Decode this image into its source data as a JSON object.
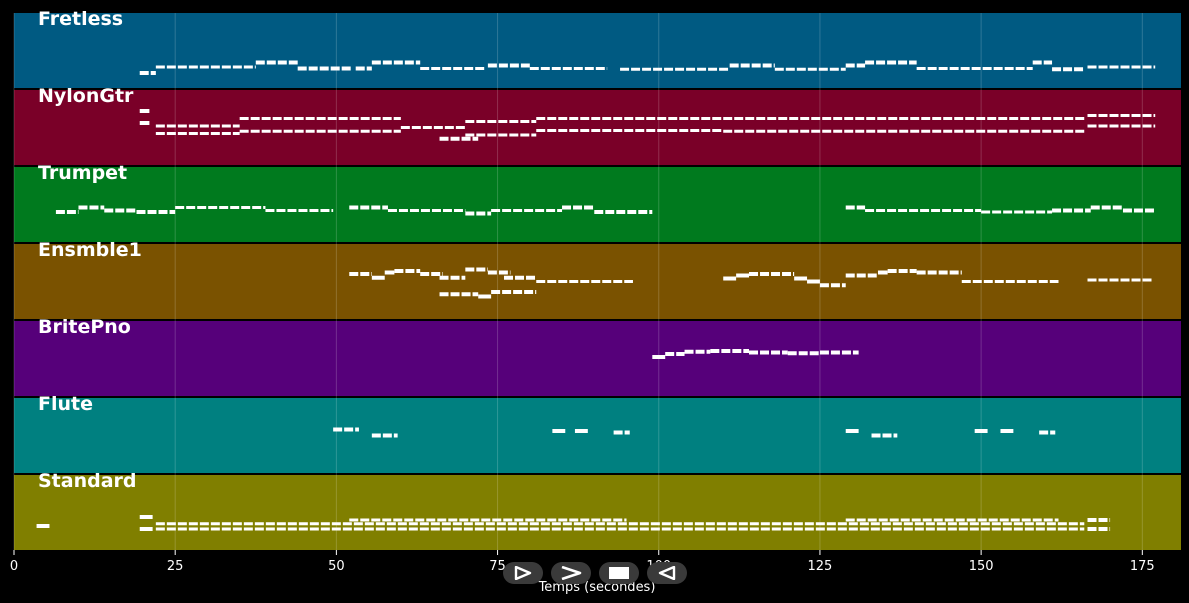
{
  "chart_data": {
    "type": "piano-roll",
    "xlabel": "Temps (secondes)",
    "xlim": [
      0,
      181
    ],
    "xticks": [
      0,
      25,
      50,
      75,
      100,
      125,
      150,
      175
    ],
    "grid": true,
    "note_color": "#ffffff",
    "tracks": [
      {
        "name": "Fretless",
        "color": "#005a82",
        "segments": [
          {
            "start": 19.5,
            "end": 22.0,
            "pitch": 0.2
          },
          {
            "start": 22.0,
            "end": 37.5,
            "pitch": 0.28
          },
          {
            "start": 37.5,
            "end": 44.0,
            "pitch": 0.34
          },
          {
            "start": 44.0,
            "end": 52.5,
            "pitch": 0.26
          },
          {
            "start": 53.0,
            "end": 55.5,
            "pitch": 0.26
          },
          {
            "start": 55.5,
            "end": 63.0,
            "pitch": 0.34
          },
          {
            "start": 63.0,
            "end": 73.0,
            "pitch": 0.26
          },
          {
            "start": 73.5,
            "end": 80.0,
            "pitch": 0.3
          },
          {
            "start": 80.0,
            "end": 92.0,
            "pitch": 0.26
          },
          {
            "start": 94.0,
            "end": 111.0,
            "pitch": 0.25
          },
          {
            "start": 111.0,
            "end": 118.0,
            "pitch": 0.3
          },
          {
            "start": 118.0,
            "end": 129.0,
            "pitch": 0.25
          },
          {
            "start": 129.0,
            "end": 132.0,
            "pitch": 0.3
          },
          {
            "start": 132.0,
            "end": 140.0,
            "pitch": 0.34
          },
          {
            "start": 140.0,
            "end": 158.0,
            "pitch": 0.26
          },
          {
            "start": 158.0,
            "end": 161.0,
            "pitch": 0.34
          },
          {
            "start": 161.0,
            "end": 166.0,
            "pitch": 0.25
          },
          {
            "start": 166.5,
            "end": 177.0,
            "pitch": 0.28
          }
        ]
      },
      {
        "name": "NylonGtr",
        "color": "#7a0028",
        "segments": [
          {
            "start": 19.5,
            "end": 21.0,
            "pitch": 0.72
          },
          {
            "start": 19.5,
            "end": 21.0,
            "pitch": 0.56
          },
          {
            "start": 22.0,
            "end": 35.0,
            "pitch": 0.52
          },
          {
            "start": 22.0,
            "end": 35.0,
            "pitch": 0.42
          },
          {
            "start": 35.0,
            "end": 60.0,
            "pitch": 0.62
          },
          {
            "start": 35.0,
            "end": 60.0,
            "pitch": 0.45
          },
          {
            "start": 60.0,
            "end": 70.0,
            "pitch": 0.5
          },
          {
            "start": 66.0,
            "end": 72.0,
            "pitch": 0.35
          },
          {
            "start": 70.0,
            "end": 81.0,
            "pitch": 0.58
          },
          {
            "start": 70.0,
            "end": 81.0,
            "pitch": 0.4
          },
          {
            "start": 81.0,
            "end": 110.0,
            "pitch": 0.62
          },
          {
            "start": 81.0,
            "end": 110.0,
            "pitch": 0.46
          },
          {
            "start": 110.0,
            "end": 166.0,
            "pitch": 0.62
          },
          {
            "start": 110.0,
            "end": 166.0,
            "pitch": 0.45
          },
          {
            "start": 166.5,
            "end": 177.0,
            "pitch": 0.66
          },
          {
            "start": 166.5,
            "end": 177.0,
            "pitch": 0.52
          }
        ]
      },
      {
        "name": "Trumpet",
        "color": "#007a1e",
        "segments": [
          {
            "start": 6.5,
            "end": 10.0,
            "pitch": 0.4
          },
          {
            "start": 10.0,
            "end": 14.0,
            "pitch": 0.46
          },
          {
            "start": 14.0,
            "end": 19.0,
            "pitch": 0.42
          },
          {
            "start": 19.0,
            "end": 25.0,
            "pitch": 0.4
          },
          {
            "start": 25.0,
            "end": 39.0,
            "pitch": 0.46
          },
          {
            "start": 39.0,
            "end": 49.5,
            "pitch": 0.42
          },
          {
            "start": 52.0,
            "end": 58.0,
            "pitch": 0.46
          },
          {
            "start": 58.0,
            "end": 70.0,
            "pitch": 0.42
          },
          {
            "start": 70.0,
            "end": 74.0,
            "pitch": 0.38
          },
          {
            "start": 74.0,
            "end": 85.0,
            "pitch": 0.42
          },
          {
            "start": 85.0,
            "end": 90.0,
            "pitch": 0.46
          },
          {
            "start": 90.0,
            "end": 99.0,
            "pitch": 0.4
          },
          {
            "start": 129.0,
            "end": 132.0,
            "pitch": 0.46
          },
          {
            "start": 132.0,
            "end": 150.0,
            "pitch": 0.42
          },
          {
            "start": 150.0,
            "end": 161.0,
            "pitch": 0.4
          },
          {
            "start": 161.0,
            "end": 167.0,
            "pitch": 0.42
          },
          {
            "start": 167.0,
            "end": 172.0,
            "pitch": 0.46
          },
          {
            "start": 172.0,
            "end": 177.0,
            "pitch": 0.42
          }
        ]
      },
      {
        "name": "Ensmble1",
        "color": "#7a5200",
        "segments": [
          {
            "start": 52.0,
            "end": 55.5,
            "pitch": 0.6
          },
          {
            "start": 55.5,
            "end": 57.5,
            "pitch": 0.55
          },
          {
            "start": 57.5,
            "end": 59.0,
            "pitch": 0.62
          },
          {
            "start": 59.0,
            "end": 63.0,
            "pitch": 0.64
          },
          {
            "start": 63.0,
            "end": 66.5,
            "pitch": 0.6
          },
          {
            "start": 66.0,
            "end": 70.0,
            "pitch": 0.55
          },
          {
            "start": 70.0,
            "end": 73.5,
            "pitch": 0.66
          },
          {
            "start": 73.5,
            "end": 77.0,
            "pitch": 0.62
          },
          {
            "start": 76.0,
            "end": 81.0,
            "pitch": 0.55
          },
          {
            "start": 81.0,
            "end": 96.0,
            "pitch": 0.5
          },
          {
            "start": 66.0,
            "end": 72.0,
            "pitch": 0.33
          },
          {
            "start": 72.0,
            "end": 74.0,
            "pitch": 0.3
          },
          {
            "start": 74.0,
            "end": 81.0,
            "pitch": 0.36
          },
          {
            "start": 110.0,
            "end": 112.0,
            "pitch": 0.54
          },
          {
            "start": 112.0,
            "end": 114.0,
            "pitch": 0.58
          },
          {
            "start": 114.0,
            "end": 121.0,
            "pitch": 0.6
          },
          {
            "start": 121.0,
            "end": 123.0,
            "pitch": 0.54
          },
          {
            "start": 123.0,
            "end": 125.0,
            "pitch": 0.5
          },
          {
            "start": 125.0,
            "end": 129.0,
            "pitch": 0.45
          },
          {
            "start": 129.0,
            "end": 134.0,
            "pitch": 0.58
          },
          {
            "start": 134.0,
            "end": 135.5,
            "pitch": 0.62
          },
          {
            "start": 135.5,
            "end": 140.0,
            "pitch": 0.64
          },
          {
            "start": 140.0,
            "end": 147.0,
            "pitch": 0.62
          },
          {
            "start": 147.0,
            "end": 162.0,
            "pitch": 0.5
          },
          {
            "start": 166.5,
            "end": 176.5,
            "pitch": 0.52
          }
        ]
      },
      {
        "name": "BritePno",
        "color": "#56007a",
        "segments": [
          {
            "start": 99.0,
            "end": 101.0,
            "pitch": 0.52
          },
          {
            "start": 101.0,
            "end": 104.0,
            "pitch": 0.56
          },
          {
            "start": 104.0,
            "end": 108.0,
            "pitch": 0.59
          },
          {
            "start": 108.0,
            "end": 114.0,
            "pitch": 0.6
          },
          {
            "start": 114.0,
            "end": 120.0,
            "pitch": 0.58
          },
          {
            "start": 120.0,
            "end": 125.0,
            "pitch": 0.57
          },
          {
            "start": 125.0,
            "end": 131.0,
            "pitch": 0.58
          }
        ]
      },
      {
        "name": "Flute",
        "color": "#008080",
        "segments": [
          {
            "start": 49.5,
            "end": 53.5,
            "pitch": 0.58
          },
          {
            "start": 55.5,
            "end": 59.5,
            "pitch": 0.5
          },
          {
            "start": 83.5,
            "end": 85.5,
            "pitch": 0.56
          },
          {
            "start": 87.0,
            "end": 89.0,
            "pitch": 0.56
          },
          {
            "start": 93.0,
            "end": 95.5,
            "pitch": 0.54
          },
          {
            "start": 129.0,
            "end": 131.0,
            "pitch": 0.56
          },
          {
            "start": 133.0,
            "end": 137.0,
            "pitch": 0.5
          },
          {
            "start": 149.0,
            "end": 151.0,
            "pitch": 0.56
          },
          {
            "start": 153.0,
            "end": 155.0,
            "pitch": 0.56
          },
          {
            "start": 159.0,
            "end": 161.5,
            "pitch": 0.54
          }
        ]
      },
      {
        "name": "Standard",
        "color": "#807f00",
        "segments": [
          {
            "start": 3.5,
            "end": 5.5,
            "pitch": 0.32
          },
          {
            "start": 19.5,
            "end": 21.5,
            "pitch": 0.44
          },
          {
            "start": 19.5,
            "end": 21.5,
            "pitch": 0.28
          },
          {
            "start": 22.0,
            "end": 166.0,
            "pitch": 0.35
          },
          {
            "start": 22.0,
            "end": 166.0,
            "pitch": 0.28
          },
          {
            "start": 52.0,
            "end": 95.0,
            "pitch": 0.4
          },
          {
            "start": 129.0,
            "end": 162.0,
            "pitch": 0.4
          },
          {
            "start": 166.5,
            "end": 170.0,
            "pitch": 0.4
          },
          {
            "start": 166.5,
            "end": 170.0,
            "pitch": 0.28
          }
        ]
      }
    ]
  },
  "controls": [
    {
      "name": "play-button",
      "icon": "play-icon"
    },
    {
      "name": "next-button",
      "icon": "next-icon"
    },
    {
      "name": "stop-button",
      "icon": "stop-icon"
    },
    {
      "name": "previous-button",
      "icon": "previous-icon"
    }
  ]
}
